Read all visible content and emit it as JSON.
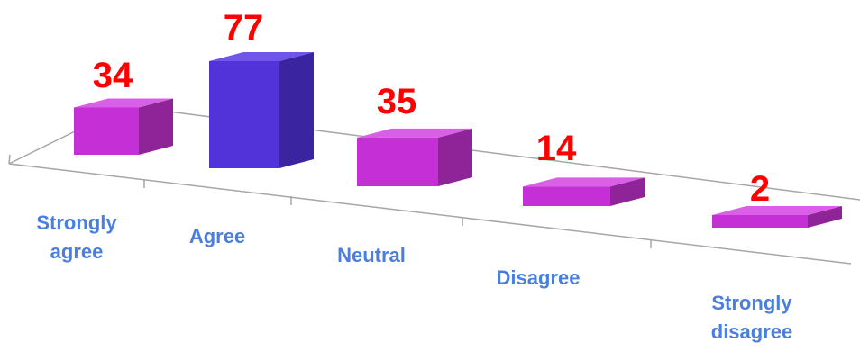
{
  "chart_data": {
    "type": "bar",
    "title": "",
    "xlabel": "",
    "ylabel": "",
    "categories": [
      "Strongly agree",
      "Agree",
      "Neutral",
      "Disagree",
      "Strongly disagree"
    ],
    "category_lines": [
      [
        "Strongly",
        "agree"
      ],
      [
        "Agree"
      ],
      [
        "Neutral"
      ],
      [
        "Disagree"
      ],
      [
        "Strongly",
        "disagree"
      ]
    ],
    "values": [
      34,
      77,
      35,
      14,
      2
    ],
    "highlight_index": 1,
    "grid": false,
    "legend": "none",
    "style": "3d-perspective"
  },
  "colors": {
    "bar_front": "#c52fd6",
    "bar_top": "#d85fe6",
    "bar_side": "#8f2398",
    "highlight_front": "#5233d9",
    "highlight_top": "#6f55e8",
    "highlight_side": "#3a24a0",
    "value_label": "#ff0000",
    "category_label": "#4a7fe0",
    "axis": "#a6a6a6"
  }
}
